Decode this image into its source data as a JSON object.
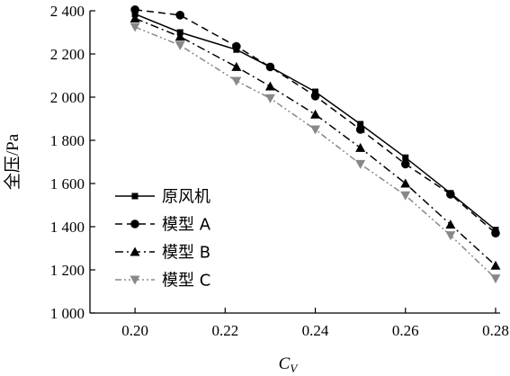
{
  "chart_data": {
    "type": "line",
    "title": "",
    "xlabel_main": "C",
    "xlabel_sub": "V",
    "ylabel": "全压/Pa",
    "xlim": [
      0.19,
      0.281
    ],
    "ylim": [
      1000,
      2400
    ],
    "x_ticks": [
      0.2,
      0.22,
      0.24,
      0.26,
      0.28
    ],
    "x_tick_labels": [
      "0.20",
      "0.22",
      "0.24",
      "0.26",
      "0.28"
    ],
    "y_ticks": [
      1000,
      1200,
      1400,
      1600,
      1800,
      2000,
      2200,
      2400
    ],
    "y_tick_labels": [
      "1 000",
      "1 200",
      "1 400",
      "1 600",
      "1 800",
      "2 000",
      "2 200",
      "2 400"
    ],
    "grid": false,
    "legend_position": "bottom-left",
    "x": [
      0.2,
      0.21,
      0.2225,
      0.23,
      0.24,
      0.25,
      0.26,
      0.27,
      0.28
    ],
    "series": [
      {
        "name": "原风机",
        "color": "#000000",
        "dash": "solid",
        "marker": "square",
        "values": [
          2385,
          2300,
          2220,
          2140,
          2025,
          1875,
          1720,
          1555,
          1385
        ]
      },
      {
        "name": "模型 A",
        "color": "#000000",
        "dash": "dashed",
        "marker": "circle",
        "values": [
          2405,
          2380,
          2235,
          2140,
          2005,
          1850,
          1690,
          1550,
          1370
        ]
      },
      {
        "name": "模型 B",
        "color": "#000000",
        "dash": "dash-dot",
        "marker": "triangle-up",
        "values": [
          2365,
          2280,
          2140,
          2050,
          1920,
          1765,
          1600,
          1410,
          1220
        ]
      },
      {
        "name": "模型 C",
        "color": "#888888",
        "dash": "dash-dot-dot",
        "marker": "triangle-down",
        "values": [
          2325,
          2240,
          2075,
          1995,
          1850,
          1690,
          1545,
          1360,
          1160
        ]
      }
    ]
  }
}
